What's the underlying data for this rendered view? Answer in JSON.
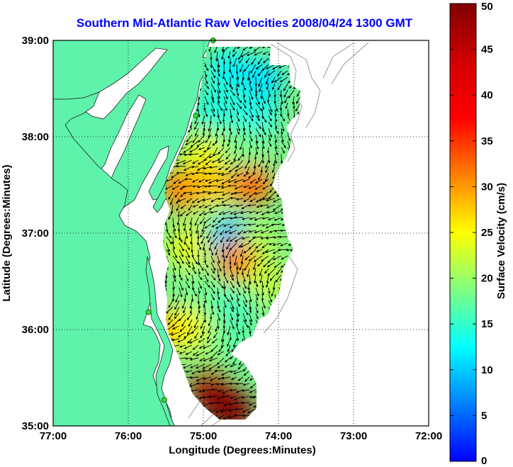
{
  "chart_data": {
    "type": "heatmap",
    "title": "Southern Mid-Atlantic Raw Velocities 2008/04/24 1300 GMT",
    "xlabel": "Longitude (Degrees:Minutes)",
    "ylabel": "Latitude (Degrees:Minutes)",
    "xlim": [
      -77,
      -72
    ],
    "ylim": [
      35,
      39
    ],
    "x_ticks": [
      {
        "value": -77,
        "label": "77:00"
      },
      {
        "value": -76,
        "label": "76:00"
      },
      {
        "value": -75,
        "label": "75:00"
      },
      {
        "value": -74,
        "label": "74:00"
      },
      {
        "value": -73,
        "label": "73:00"
      },
      {
        "value": -72,
        "label": "72:00"
      }
    ],
    "y_ticks": [
      {
        "value": 35,
        "label": "35:00"
      },
      {
        "value": 36,
        "label": "36:00"
      },
      {
        "value": 37,
        "label": "37:00"
      },
      {
        "value": 38,
        "label": "38:00"
      },
      {
        "value": 39,
        "label": "39:00"
      }
    ],
    "grid": true,
    "colorbar": {
      "label": "Surface Velocity (cm/s)",
      "min": 0,
      "max": 50,
      "ticks": [
        0,
        5,
        10,
        15,
        20,
        25,
        30,
        35,
        40,
        45,
        50
      ],
      "colormap": "jet"
    },
    "land_color": "#5ef2aa",
    "coast_stations": [
      {
        "lon": -74.87,
        "lat": 39.0
      },
      {
        "lon": -75.1,
        "lat": 38.22
      },
      {
        "lon": -75.73,
        "lat": 36.18
      },
      {
        "lon": -75.52,
        "lat": 35.27
      }
    ],
    "speed_field": [
      {
        "lon": -74.65,
        "lat": 38.7,
        "speed": 12
      },
      {
        "lon": -74.2,
        "lat": 38.6,
        "speed": 11
      },
      {
        "lon": -74.85,
        "lat": 38.3,
        "speed": 14
      },
      {
        "lon": -74.3,
        "lat": 38.2,
        "speed": 13
      },
      {
        "lon": -75.0,
        "lat": 37.8,
        "speed": 24
      },
      {
        "lon": -74.4,
        "lat": 37.9,
        "speed": 18
      },
      {
        "lon": -75.3,
        "lat": 37.45,
        "speed": 31
      },
      {
        "lon": -74.9,
        "lat": 37.5,
        "speed": 28
      },
      {
        "lon": -74.35,
        "lat": 37.5,
        "speed": 32
      },
      {
        "lon": -74.85,
        "lat": 37.1,
        "speed": 20
      },
      {
        "lon": -74.65,
        "lat": 36.95,
        "speed": 9
      },
      {
        "lon": -74.25,
        "lat": 36.9,
        "speed": 21
      },
      {
        "lon": -75.2,
        "lat": 36.85,
        "speed": 24
      },
      {
        "lon": -74.55,
        "lat": 36.7,
        "speed": 31
      },
      {
        "lon": -74.15,
        "lat": 36.5,
        "speed": 22
      },
      {
        "lon": -75.05,
        "lat": 36.4,
        "speed": 18
      },
      {
        "lon": -74.6,
        "lat": 36.25,
        "speed": 16
      },
      {
        "lon": -75.45,
        "lat": 36.0,
        "speed": 30
      },
      {
        "lon": -75.2,
        "lat": 36.0,
        "speed": 25
      },
      {
        "lon": -74.8,
        "lat": 35.8,
        "speed": 20
      },
      {
        "lon": -74.55,
        "lat": 35.85,
        "speed": 17
      },
      {
        "lon": -74.9,
        "lat": 35.4,
        "speed": 47
      },
      {
        "lon": -74.75,
        "lat": 35.2,
        "speed": 50
      },
      {
        "lon": -74.6,
        "lat": 35.15,
        "speed": 50
      }
    ]
  }
}
